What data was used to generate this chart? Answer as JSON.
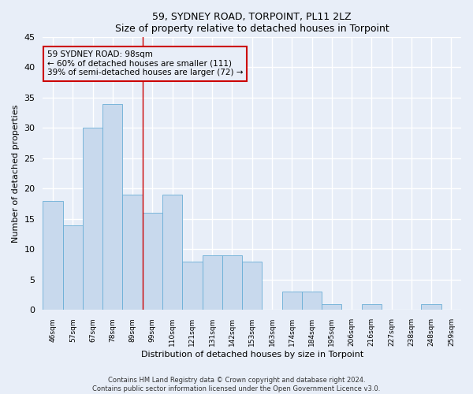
{
  "title1": "59, SYDNEY ROAD, TORPOINT, PL11 2LZ",
  "title2": "Size of property relative to detached houses in Torpoint",
  "xlabel": "Distribution of detached houses by size in Torpoint",
  "ylabel": "Number of detached properties",
  "categories": [
    "46sqm",
    "57sqm",
    "67sqm",
    "78sqm",
    "89sqm",
    "99sqm",
    "110sqm",
    "121sqm",
    "131sqm",
    "142sqm",
    "153sqm",
    "163sqm",
    "174sqm",
    "184sqm",
    "195sqm",
    "206sqm",
    "216sqm",
    "227sqm",
    "238sqm",
    "248sqm",
    "259sqm"
  ],
  "values": [
    18,
    14,
    30,
    34,
    19,
    16,
    19,
    8,
    9,
    9,
    8,
    0,
    3,
    3,
    1,
    0,
    1,
    0,
    0,
    1,
    0
  ],
  "bar_color": "#c8d9ed",
  "bar_edge_color": "#6aaed6",
  "bar_width": 1.0,
  "ylim": [
    0,
    45
  ],
  "yticks": [
    0,
    5,
    10,
    15,
    20,
    25,
    30,
    35,
    40,
    45
  ],
  "vline_x": 4.5,
  "annotation_line1": "59 SYDNEY ROAD: 98sqm",
  "annotation_line2": "← 60% of detached houses are smaller (111)",
  "annotation_line3": "39% of semi-detached houses are larger (72) →",
  "vline_color": "#cc0000",
  "annotation_box_edgecolor": "#cc0000",
  "footnote1": "Contains HM Land Registry data © Crown copyright and database right 2024.",
  "footnote2": "Contains public sector information licensed under the Open Government Licence v3.0.",
  "background_color": "#e8eef8",
  "grid_color": "#ffffff"
}
